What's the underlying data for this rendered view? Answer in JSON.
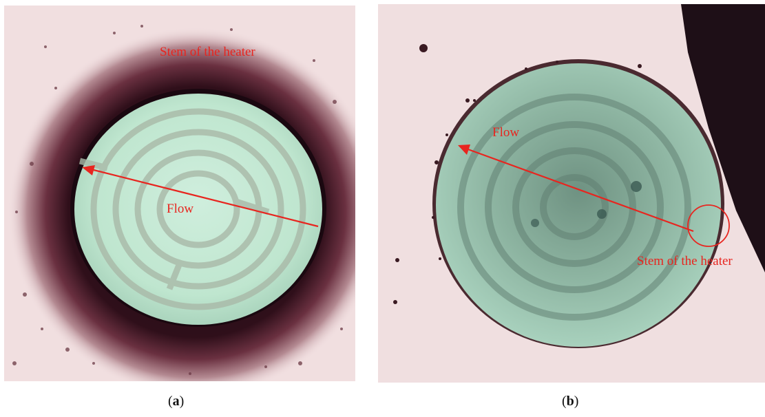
{
  "panels": [
    {
      "id": "a",
      "caption_open": "(",
      "caption_letter": "a",
      "caption_close": ")",
      "annotations": {
        "stem": "Stem of the heater",
        "flow": "Flow"
      }
    },
    {
      "id": "b",
      "caption_open": "(",
      "caption_letter": "b",
      "caption_close": ")",
      "annotations": {
        "stem": "Stem of the heater",
        "flow": "Flow"
      }
    }
  ],
  "colors": {
    "annotation": "#e8251f",
    "background_pink": "#f1dfe0",
    "heater_green": "#c4ebd5",
    "dark_ring": "#3a1420"
  }
}
